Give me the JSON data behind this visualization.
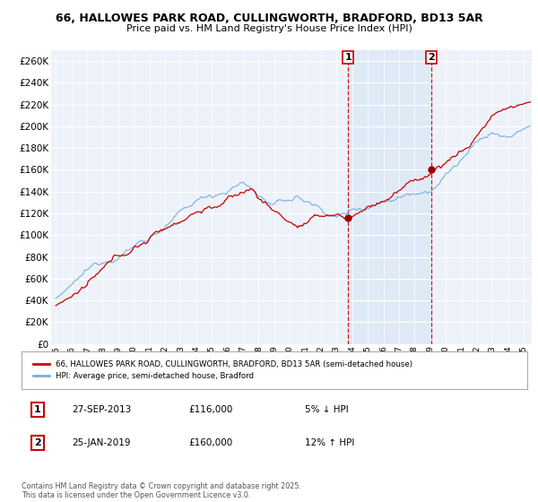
{
  "title1": "66, HALLOWES PARK ROAD, CULLINGWORTH, BRADFORD, BD13 5AR",
  "title2": "Price paid vs. HM Land Registry's House Price Index (HPI)",
  "legend_label1": "66, HALLOWES PARK ROAD, CULLINGWORTH, BRADFORD, BD13 5AR (semi-detached house)",
  "legend_label2": "HPI: Average price, semi-detached house, Bradford",
  "sale1_date": "27-SEP-2013",
  "sale1_price": 116000,
  "sale1_hpi": "5% ↓ HPI",
  "sale2_date": "25-JAN-2019",
  "sale2_price": 160000,
  "sale2_hpi": "12% ↑ HPI",
  "footer": "Contains HM Land Registry data © Crown copyright and database right 2025.\nThis data is licensed under the Open Government Licence v3.0.",
  "ylim": [
    0,
    270000
  ],
  "yticks": [
    0,
    20000,
    40000,
    60000,
    80000,
    100000,
    120000,
    140000,
    160000,
    180000,
    200000,
    220000,
    240000,
    260000
  ],
  "color_hpi": "#7ab0dc",
  "color_sale": "#cc0000",
  "color_vline": "#cc0000",
  "color_sale_dot": "#990000",
  "bg_chart": "#edf2fa",
  "bg_shade": "#dce8f5",
  "bg_fig": "#ffffff",
  "sale1_x": 2013.75,
  "sale2_x": 2019.08
}
